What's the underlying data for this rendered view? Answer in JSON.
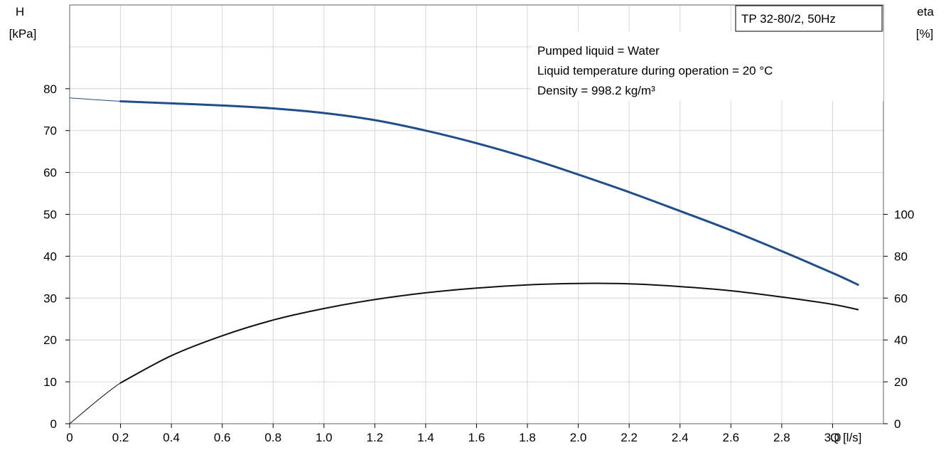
{
  "chart_data": {
    "type": "line",
    "title": "TP 32-80/2, 50Hz",
    "annotations": [
      "Pumped liquid = Water",
      "Liquid temperature during operation = 20 °C",
      "Density = 998.2 kg/m³"
    ],
    "x_axis": {
      "label": "Q [l/s]",
      "range": [
        0,
        3.2
      ],
      "ticks": [
        "0",
        "0.2",
        "0.4",
        "0.6",
        "0.8",
        "1.0",
        "1.2",
        "1.4",
        "1.6",
        "1.8",
        "2.0",
        "2.2",
        "2.4",
        "2.6",
        "2.8",
        "3.0"
      ]
    },
    "y_axis_left": {
      "label_line1": "H",
      "label_line2": "[kPa]",
      "range": [
        0,
        100
      ],
      "ticks": [
        "0",
        "10",
        "20",
        "30",
        "40",
        "50",
        "60",
        "70",
        "80"
      ]
    },
    "y_axis_right": {
      "label_line1": "eta",
      "label_line2": "[%]",
      "range": [
        0,
        200
      ],
      "ticks": [
        "0",
        "20",
        "40",
        "60",
        "80",
        "100"
      ]
    },
    "grid": true,
    "series": [
      {
        "axis": "left",
        "color": "#1f4e8c",
        "x": [
          0,
          0.2,
          0.4,
          0.6,
          0.8,
          1.0,
          1.2,
          1.4,
          1.6,
          1.8,
          2.0,
          2.2,
          2.4,
          2.6,
          2.8,
          3.0,
          3.1
        ],
        "y": [
          77.8,
          77.0,
          76.5,
          76.0,
          75.3,
          74.2,
          72.5,
          70.0,
          67.0,
          63.5,
          59.5,
          55.3,
          50.8,
          46.2,
          41.2,
          36.0,
          33.2
        ]
      },
      {
        "axis": "right",
        "color": "#111111",
        "x": [
          0,
          0.2,
          0.4,
          0.6,
          0.8,
          1.0,
          1.2,
          1.4,
          1.6,
          1.8,
          2.0,
          2.2,
          2.4,
          2.6,
          2.8,
          3.0,
          3.1
        ],
        "y": [
          0,
          19.5,
          32.5,
          42.0,
          49.5,
          55.0,
          59.3,
          62.5,
          64.8,
          66.3,
          67.0,
          66.8,
          65.5,
          63.5,
          60.5,
          57.0,
          54.5
        ]
      }
    ]
  }
}
